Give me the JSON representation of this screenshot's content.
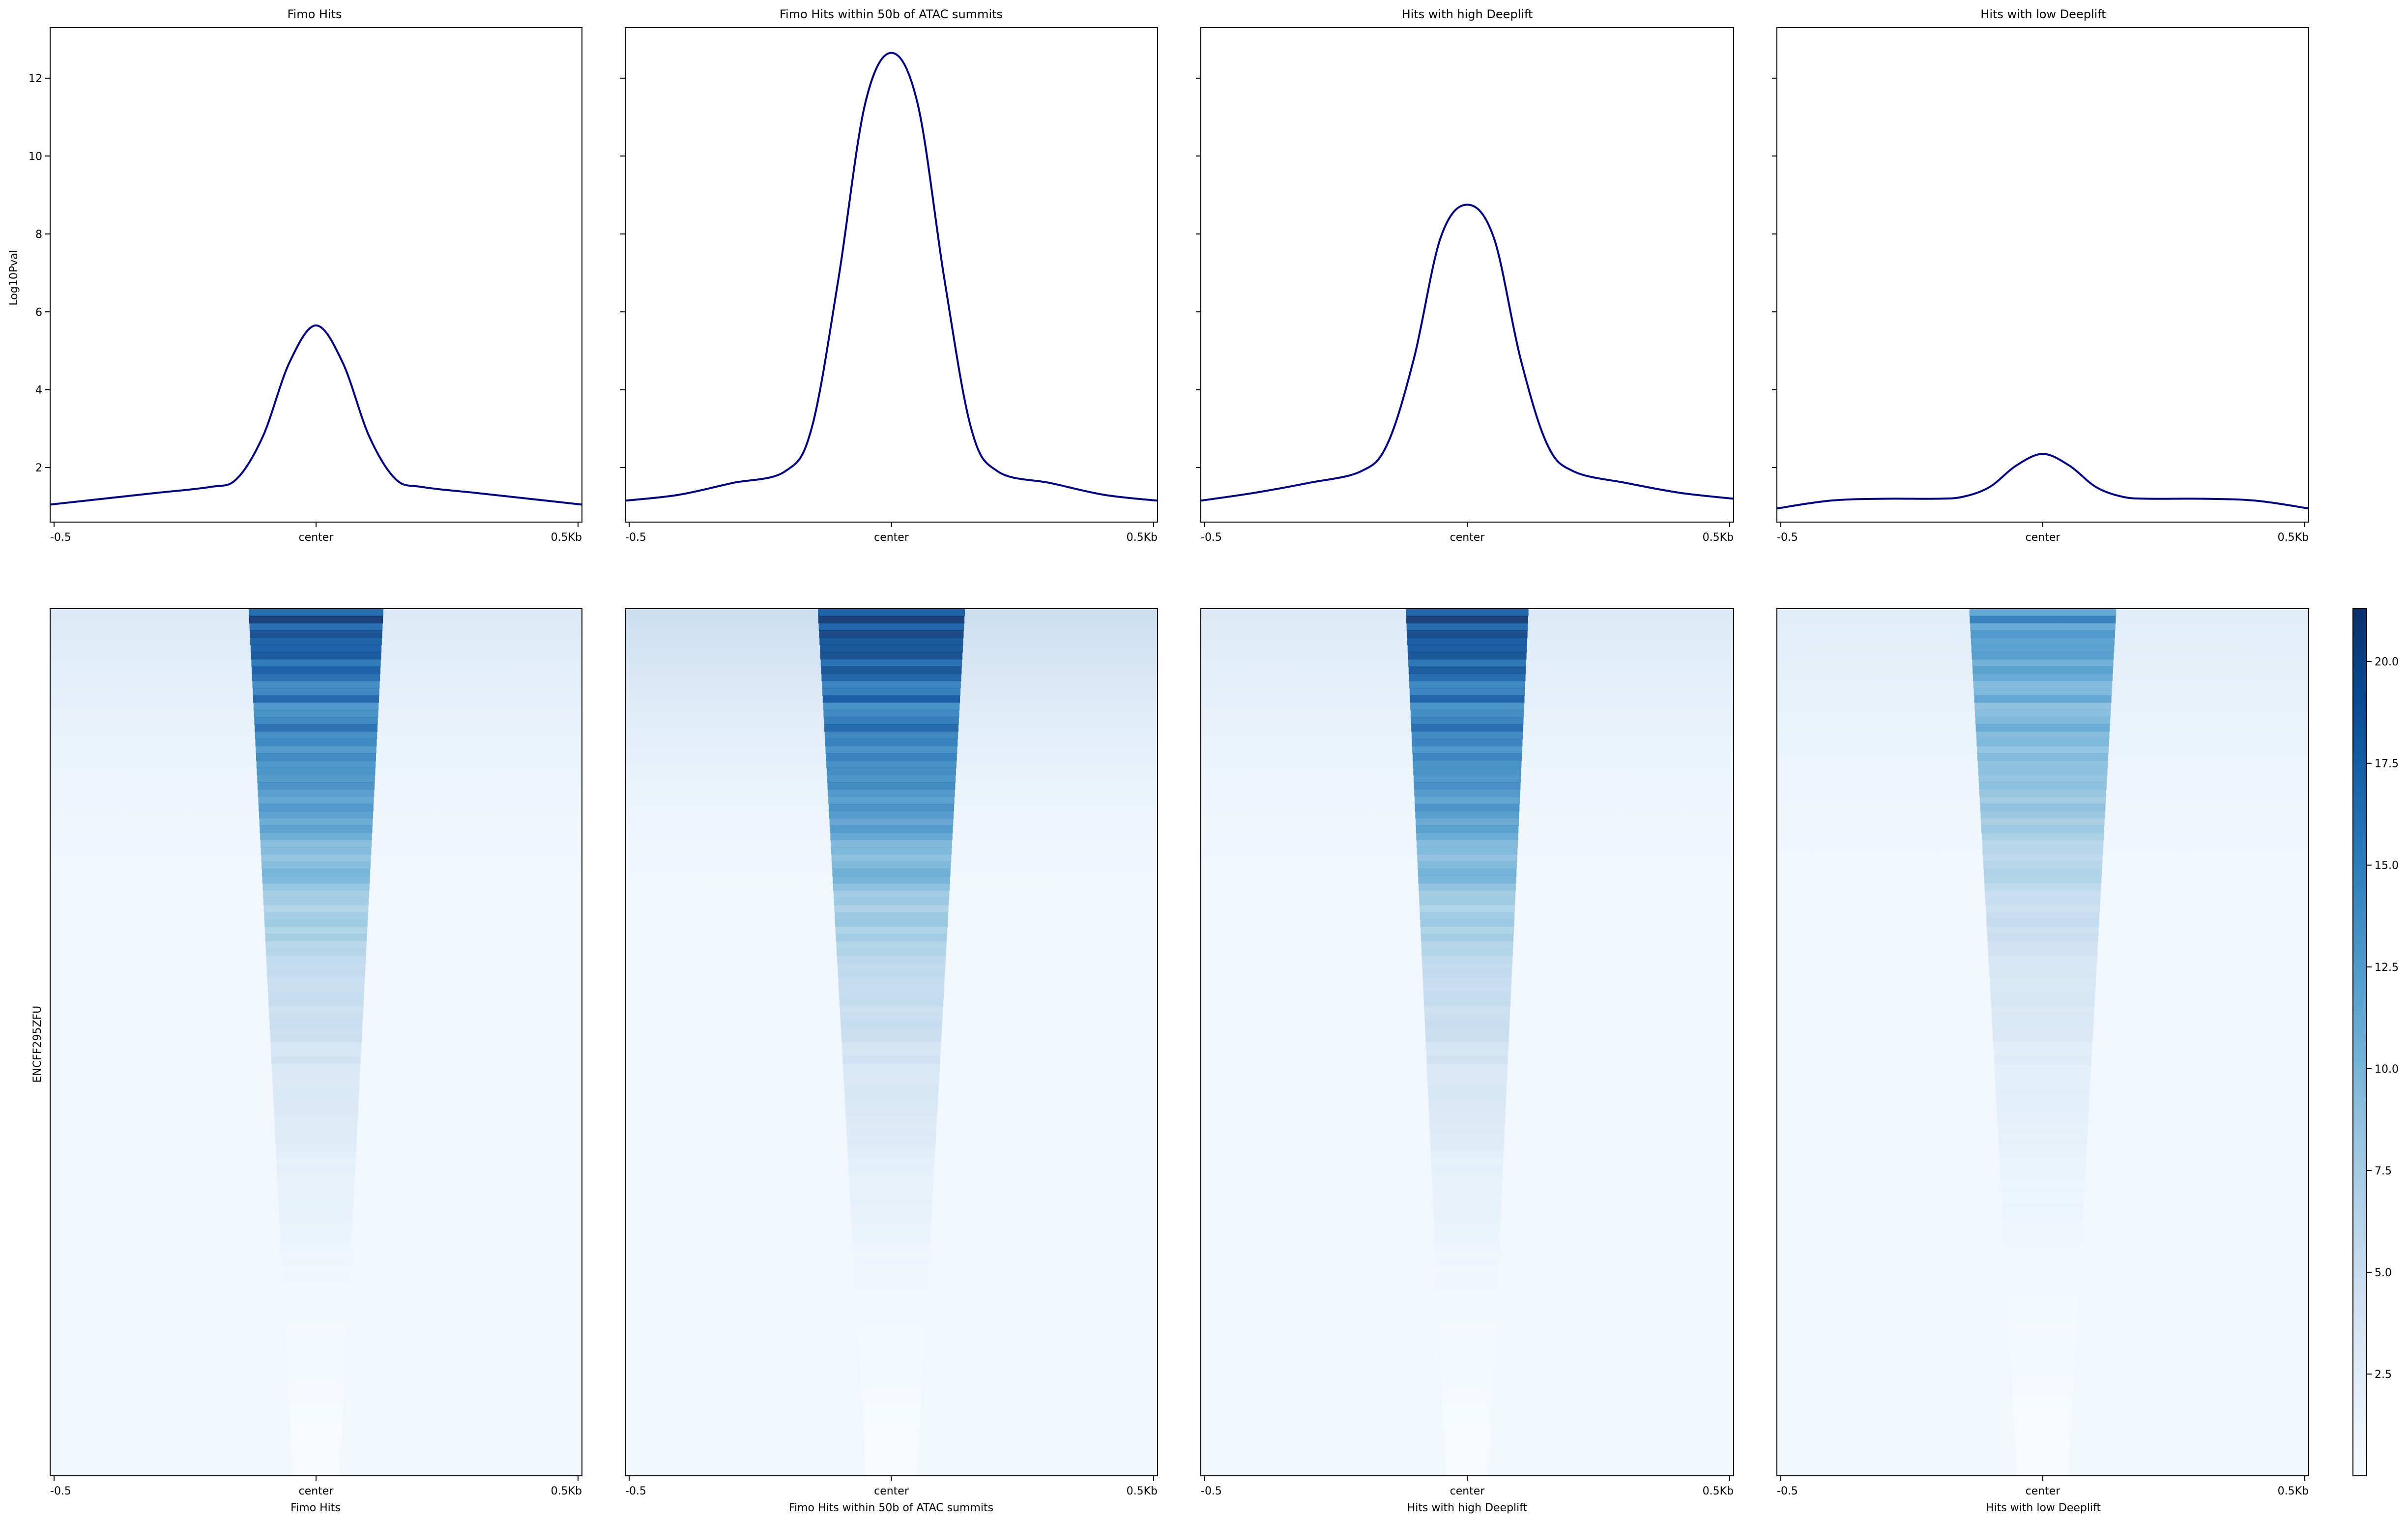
{
  "figure": {
    "heatmap_ylabel": "ENCFF295ZFU",
    "colormap": "Blues",
    "line_color": "#00008b"
  },
  "chart_data": [
    {
      "type": "line",
      "title": "Fimo Hits",
      "ylabel": "Log10Pval",
      "xlabel": "",
      "x_ticks": [
        "-0.5",
        "center",
        "0.5Kb"
      ],
      "xlim": [
        -0.5,
        0.5
      ],
      "ylim": [
        0.6,
        13.3
      ],
      "y_ticks": [
        "2",
        "4",
        "6",
        "8",
        "10",
        "12"
      ],
      "grid": false,
      "series": [
        {
          "x": [
            -0.5,
            -0.4,
            -0.3,
            -0.2,
            -0.15,
            -0.1,
            -0.05,
            0,
            0.05,
            0.1,
            0.15,
            0.2,
            0.3,
            0.4,
            0.5
          ],
          "y": [
            1.05,
            1.2,
            1.35,
            1.5,
            1.7,
            2.8,
            4.7,
            5.65,
            4.7,
            2.8,
            1.7,
            1.5,
            1.35,
            1.2,
            1.05
          ]
        }
      ]
    },
    {
      "type": "line",
      "title": "Fimo Hits within 50b of ATAC summits",
      "ylabel": "",
      "xlabel": "",
      "x_ticks": [
        "-0.5",
        "center",
        "0.5Kb"
      ],
      "xlim": [
        -0.5,
        0.5
      ],
      "ylim": [
        0.6,
        13.3
      ],
      "y_ticks": [],
      "grid": false,
      "series": [
        {
          "x": [
            -0.5,
            -0.4,
            -0.3,
            -0.2,
            -0.15,
            -0.1,
            -0.05,
            0,
            0.05,
            0.1,
            0.15,
            0.2,
            0.3,
            0.4,
            0.5
          ],
          "y": [
            1.15,
            1.3,
            1.6,
            1.9,
            3.0,
            6.8,
            11.3,
            12.65,
            11.3,
            6.8,
            3.0,
            1.9,
            1.6,
            1.3,
            1.15
          ]
        }
      ]
    },
    {
      "type": "line",
      "title": "Hits with high Deeplift",
      "ylabel": "",
      "xlabel": "",
      "x_ticks": [
        "-0.5",
        "center",
        "0.5Kb"
      ],
      "xlim": [
        -0.5,
        0.5
      ],
      "ylim": [
        0.6,
        13.3
      ],
      "y_ticks": [],
      "grid": false,
      "series": [
        {
          "x": [
            -0.5,
            -0.4,
            -0.3,
            -0.2,
            -0.15,
            -0.1,
            -0.05,
            0,
            0.05,
            0.1,
            0.15,
            0.2,
            0.3,
            0.4,
            0.5
          ],
          "y": [
            1.15,
            1.35,
            1.6,
            1.9,
            2.6,
            4.8,
            7.9,
            8.75,
            7.9,
            4.8,
            2.6,
            1.9,
            1.6,
            1.35,
            1.2
          ]
        }
      ]
    },
    {
      "type": "line",
      "title": "Hits with low Deeplift",
      "ylabel": "",
      "xlabel": "",
      "x_ticks": [
        "-0.5",
        "center",
        "0.5Kb"
      ],
      "xlim": [
        -0.5,
        0.5
      ],
      "ylim": [
        0.6,
        13.3
      ],
      "y_ticks": [],
      "grid": false,
      "series": [
        {
          "x": [
            -0.5,
            -0.4,
            -0.3,
            -0.2,
            -0.15,
            -0.1,
            -0.05,
            0,
            0.05,
            0.1,
            0.15,
            0.2,
            0.3,
            0.4,
            0.5
          ],
          "y": [
            0.95,
            1.15,
            1.2,
            1.2,
            1.25,
            1.5,
            2.05,
            2.35,
            2.05,
            1.5,
            1.25,
            1.2,
            1.2,
            1.15,
            0.95
          ]
        }
      ]
    },
    {
      "type": "heatmap",
      "xlabel": "Fimo Hits",
      "ylabel": "ENCFF295ZFU",
      "x_ticks": [
        "-0.5",
        "center",
        "0.5Kb"
      ],
      "xlim": [
        -0.5,
        0.5
      ],
      "peak_value": 20.5,
      "top_baseline": 3,
      "spread_kb": 0.11
    },
    {
      "type": "heatmap",
      "xlabel": "Fimo Hits within 50b of ATAC summits",
      "x_ticks": [
        "-0.5",
        "center",
        "0.5Kb"
      ],
      "xlim": [
        -0.5,
        0.5
      ],
      "peak_value": 21.5,
      "top_baseline": 5,
      "spread_kb": 0.12
    },
    {
      "type": "heatmap",
      "xlabel": "Hits with high Deeplift",
      "x_ticks": [
        "-0.5",
        "center",
        "0.5Kb"
      ],
      "xlim": [
        -0.5,
        0.5
      ],
      "peak_value": 21,
      "top_baseline": 3,
      "spread_kb": 0.1
    },
    {
      "type": "heatmap",
      "xlabel": "Hits with low Deeplift",
      "x_ticks": [
        "-0.5",
        "center",
        "0.5Kb"
      ],
      "xlim": [
        -0.5,
        0.5
      ],
      "peak_value": 14,
      "top_baseline": 2.5,
      "spread_kb": 0.12
    }
  ],
  "colorbar": {
    "type": "colorbar",
    "colormap": "Blues",
    "range": [
      0,
      21.3
    ],
    "ticks": [
      "2.5",
      "5.0",
      "7.5",
      "10.0",
      "12.5",
      "15.0",
      "17.5",
      "20.0"
    ]
  }
}
